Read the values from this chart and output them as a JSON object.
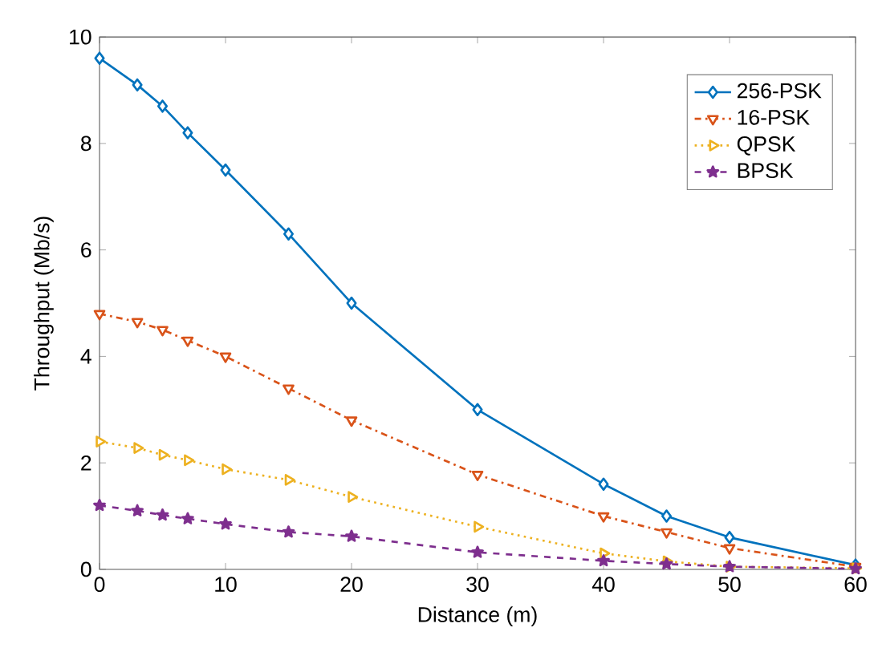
{
  "chart_data": {
    "type": "line",
    "xlabel": "Distance (m)",
    "ylabel": "Throughput (Mb/s)",
    "x": [
      0,
      3,
      5,
      7,
      10,
      15,
      20,
      30,
      40,
      45,
      50,
      60
    ],
    "series": [
      {
        "name": "256-PSK",
        "color": "#0072bd",
        "marker": "diamond",
        "line_style": "solid",
        "values": [
          9.6,
          9.1,
          8.7,
          8.2,
          7.5,
          6.3,
          5.0,
          3.0,
          1.6,
          1.0,
          0.6,
          0.08
        ]
      },
      {
        "name": "16-PSK",
        "color": "#d95319",
        "marker": "triangle-down",
        "line_style": "dashdot",
        "values": [
          4.8,
          4.65,
          4.5,
          4.3,
          4.0,
          3.4,
          2.8,
          1.78,
          1.0,
          0.7,
          0.4,
          0.05
        ]
      },
      {
        "name": "QPSK",
        "color": "#edb120",
        "marker": "triangle-right",
        "line_style": "dotted",
        "values": [
          2.4,
          2.28,
          2.15,
          2.05,
          1.88,
          1.68,
          1.36,
          0.8,
          0.3,
          0.15,
          0.05,
          0.02
        ]
      },
      {
        "name": "BPSK",
        "color": "#7e2f8e",
        "marker": "star",
        "line_style": "dashed",
        "values": [
          1.2,
          1.1,
          1.02,
          0.95,
          0.85,
          0.7,
          0.62,
          0.32,
          0.16,
          0.1,
          0.05,
          0.01
        ]
      }
    ],
    "xlim": [
      0,
      60
    ],
    "xticks": [
      0,
      10,
      20,
      30,
      40,
      50,
      60
    ],
    "ylim": [
      0,
      10
    ],
    "yticks": [
      0,
      2,
      4,
      6,
      8,
      10
    ],
    "legend": "top right",
    "grid": false
  }
}
